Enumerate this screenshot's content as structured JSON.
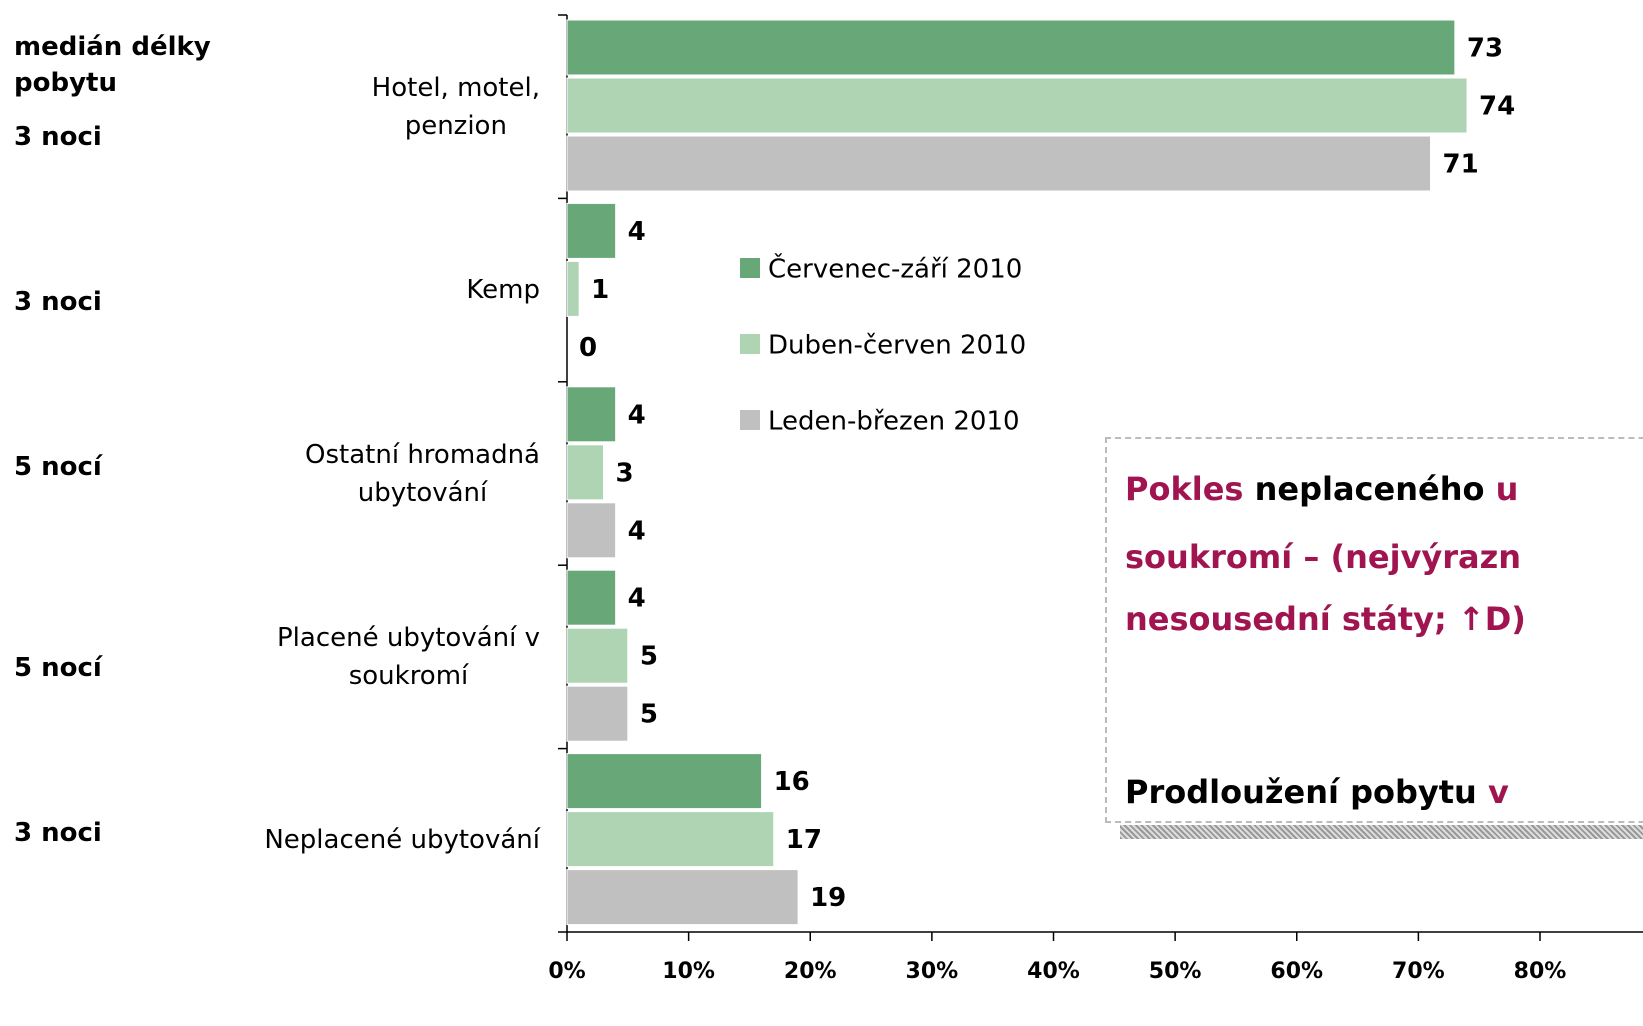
{
  "chart_data": {
    "type": "bar",
    "orientation": "horizontal",
    "categories": [
      "Hotel, motel,\npenzion",
      "Kemp",
      "Ostatní hromadná\nubytování",
      "Placené ubytování v\nsoukromí",
      "Neplacené ubytování"
    ],
    "series": [
      {
        "name": "Červenec-září 2010",
        "color": "#68a878",
        "values": [
          73,
          4,
          4,
          4,
          16
        ]
      },
      {
        "name": "Duben-červen 2010",
        "color": "#aed4b4",
        "values": [
          74,
          1,
          3,
          5,
          17
        ]
      },
      {
        "name": "Leden-březen 2010",
        "color": "#c0c0c0",
        "values": [
          71,
          0,
          4,
          5,
          19
        ]
      }
    ],
    "xlim": [
      0,
      80
    ],
    "xticks": [
      {
        "value": 0,
        "label": "0%"
      },
      {
        "value": 10,
        "label": "10%"
      },
      {
        "value": 20,
        "label": "20%"
      },
      {
        "value": 30,
        "label": "30%"
      },
      {
        "value": 40,
        "label": "40%"
      },
      {
        "value": 50,
        "label": "50%"
      },
      {
        "value": 60,
        "label": "60%"
      },
      {
        "value": 70,
        "label": "70%"
      },
      {
        "value": 80,
        "label": "80%"
      }
    ],
    "side_column": {
      "title": "medián délky pobytu",
      "values": [
        "3 noci",
        "3 noci",
        "5 nocí",
        "5 nocí",
        "3 noci"
      ]
    }
  },
  "note": {
    "lines": [
      [
        {
          "text": "Pokles",
          "color": "#a0154f"
        },
        {
          "text": "neplaceného",
          "color": "#000000"
        },
        {
          "text": "u",
          "color": "#a0154f"
        }
      ],
      [
        {
          "text": "soukromí – (nejvýrazn",
          "color": "#a0154f"
        }
      ],
      [
        {
          "text": "nesousední státy; ↑D)",
          "color": "#a0154f"
        }
      ],
      [
        {
          "text": "Prodloužení pobytu",
          "color": "#000000"
        },
        {
          "text": "v",
          "color": "#a0154f"
        }
      ]
    ]
  }
}
